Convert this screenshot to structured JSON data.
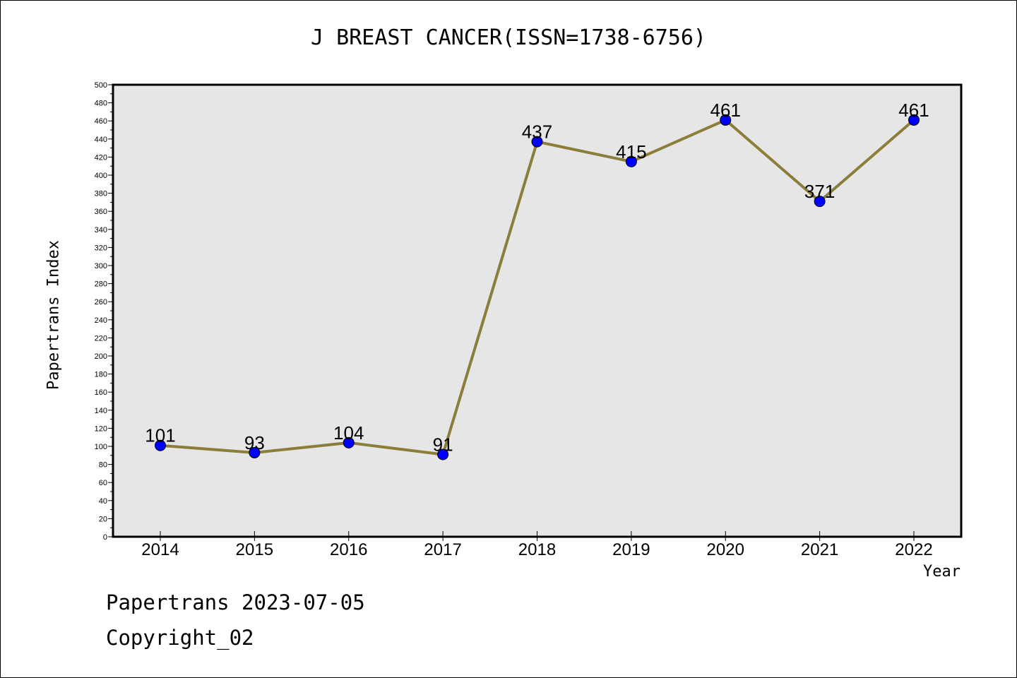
{
  "chart_data": {
    "type": "line",
    "title": "J BREAST CANCER(ISSN=1738-6756)",
    "xlabel": "Year",
    "ylabel": "Papertrans Index",
    "categories": [
      "2014",
      "2015",
      "2016",
      "2017",
      "2018",
      "2019",
      "2020",
      "2021",
      "2022"
    ],
    "series": [
      {
        "values": [
          101,
          93,
          104,
          91,
          437,
          415,
          461,
          371,
          461
        ]
      }
    ],
    "data_labels": [
      "101",
      "93",
      "104",
      "91",
      "437",
      "415",
      "461",
      "371",
      "461"
    ],
    "ylim": [
      0,
      500
    ],
    "ytick_step": 20,
    "y_ticks": [
      "0",
      "20",
      "40",
      "60",
      "80",
      "100",
      "120",
      "140",
      "160",
      "180",
      "200",
      "220",
      "240",
      "260",
      "280",
      "300",
      "320",
      "340",
      "360",
      "380",
      "400",
      "420",
      "440",
      "460",
      "480",
      "500"
    ],
    "grid": false,
    "colors": {
      "line": "#8b7d3a",
      "marker": "#0000ff",
      "plot_bg": "#e6e6e6"
    }
  },
  "footer": {
    "date_text": "Papertrans 2023-07-05",
    "copyright_text": "Copyright_02"
  }
}
